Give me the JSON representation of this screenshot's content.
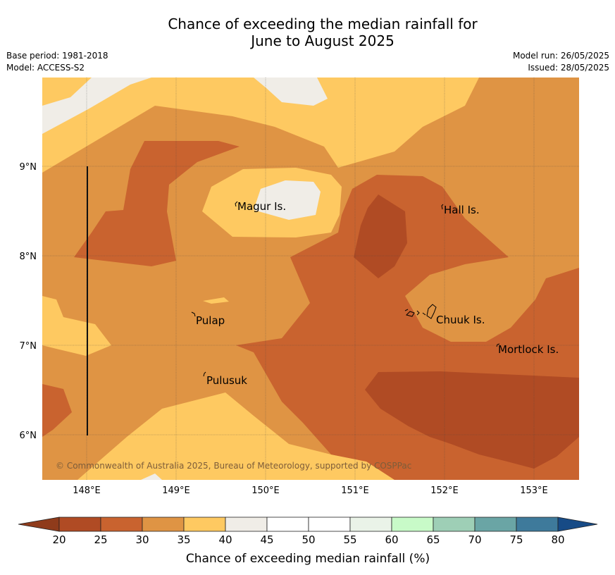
{
  "title": {
    "line1": "Chance of exceeding the median rainfall for",
    "line2": "June to August 2025"
  },
  "meta": {
    "base_period": "Base period: 1981-2018",
    "model": "Model: ACCESS-S2",
    "model_run": "Model run: 26/05/2025",
    "issued": "Issued: 28/05/2025"
  },
  "map": {
    "lon_range": [
      147.5,
      153.5
    ],
    "lat_range": [
      5.5,
      10.0
    ],
    "lon_ticks": [
      "148°E",
      "149°E",
      "150°E",
      "151°E",
      "152°E",
      "153°E"
    ],
    "lat_ticks": [
      "9°N",
      "8°N",
      "7°N",
      "6°N"
    ],
    "places": [
      {
        "name": "Magur Is.",
        "lon": 149.67,
        "lat": 8.55
      },
      {
        "name": "Hall Is.",
        "lon": 151.95,
        "lat": 8.52
      },
      {
        "name": "Pulap",
        "lon": 149.22,
        "lat": 7.28
      },
      {
        "name": "Chuuk Is.",
        "lon": 151.88,
        "lat": 7.3
      },
      {
        "name": "Mortlock Is.",
        "lon": 152.57,
        "lat": 6.97
      },
      {
        "name": "Pulusuk",
        "lon": 149.33,
        "lat": 6.63
      }
    ],
    "copyright": "© Commonwealth of Australia 2025, Bureau of Meteorology, supported by COSPPac"
  },
  "colorbar": {
    "title": "Chance of exceeding median rainfall (%)",
    "labels": [
      "20",
      "25",
      "30",
      "35",
      "40",
      "45",
      "50",
      "55",
      "60",
      "65",
      "70",
      "75",
      "80"
    ],
    "low_extend_color": "#8f3b1b",
    "high_extend_color": "#174b86",
    "colors": [
      "#b04b24",
      "#c9632f",
      "#df9444",
      "#fec961",
      "#f0ede7",
      "#ffffff",
      "#ffffff",
      "#eaf3e8",
      "#c8fac8",
      "#9ecfb6",
      "#6aa5a5",
      "#3e7a9b"
    ]
  }
}
